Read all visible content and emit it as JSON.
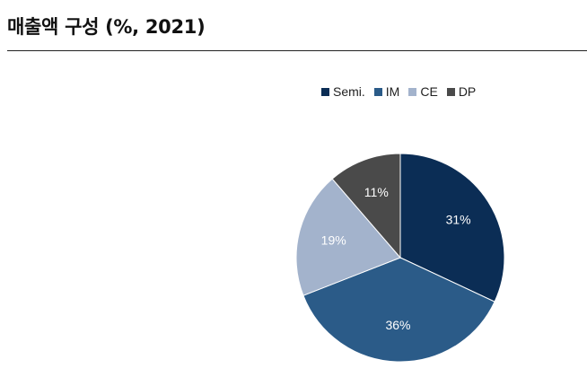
{
  "header": {
    "title": "매출액 구성 (%, 2021)"
  },
  "chart_data": {
    "type": "pie",
    "title": "매출액 구성 (%, 2021)",
    "legend_position": "top",
    "slices": [
      {
        "name": "Semi.",
        "value": 31,
        "label": "31%",
        "color": "#0b2d55"
      },
      {
        "name": "IM",
        "value": 36,
        "label": "36%",
        "color": "#2b5b88"
      },
      {
        "name": "CE",
        "value": 19,
        "label": "19%",
        "color": "#a3b3cc"
      },
      {
        "name": "DP",
        "value": 11,
        "label": "11%",
        "color": "#4a4a4a"
      }
    ]
  }
}
